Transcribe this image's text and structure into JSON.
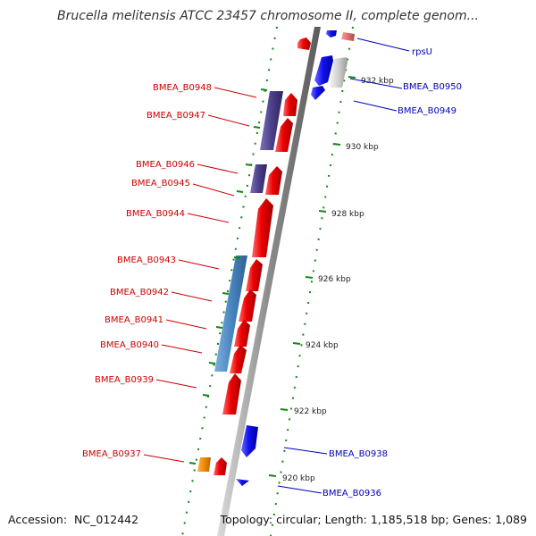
{
  "title": "Brucella melitensis ATCC 23457 chromosome II, complete genom...",
  "accession_label": "Accession:",
  "accession": "NC_012442",
  "footer_stats": "Topology: circular; Length: 1,185,518 bp; Genes: 1,089",
  "colors": {
    "backbone": "#9a9a9a",
    "forward_cds": "#ee0000",
    "reverse_cds": "#1111ee",
    "pseudo": "#c8c8c8",
    "rna": "#e07070",
    "operon_a": "#4b3f8a",
    "operon_b": "#4a86c0",
    "orange_feature": "#f08a00",
    "tick": "#118811",
    "left_label": "#cc0000",
    "right_label": "#0000bb"
  },
  "ticks": [
    "932 kbp",
    "930 kbp",
    "928 kbp",
    "926 kbp",
    "924 kbp",
    "922 kbp",
    "920 kbp"
  ],
  "left_genes": [
    "BMEA_B0948",
    "BMEA_B0947",
    "BMEA_B0946",
    "BMEA_B0945",
    "BMEA_B0944",
    "BMEA_B0943",
    "BMEA_B0942",
    "BMEA_B0941",
    "BMEA_B0940",
    "BMEA_B0939",
    "BMEA_B0937"
  ],
  "right_genes": [
    "rpsU",
    "BMEA_B0950",
    "BMEA_B0949",
    "BMEA_B0938",
    "BMEA_B0936"
  ]
}
